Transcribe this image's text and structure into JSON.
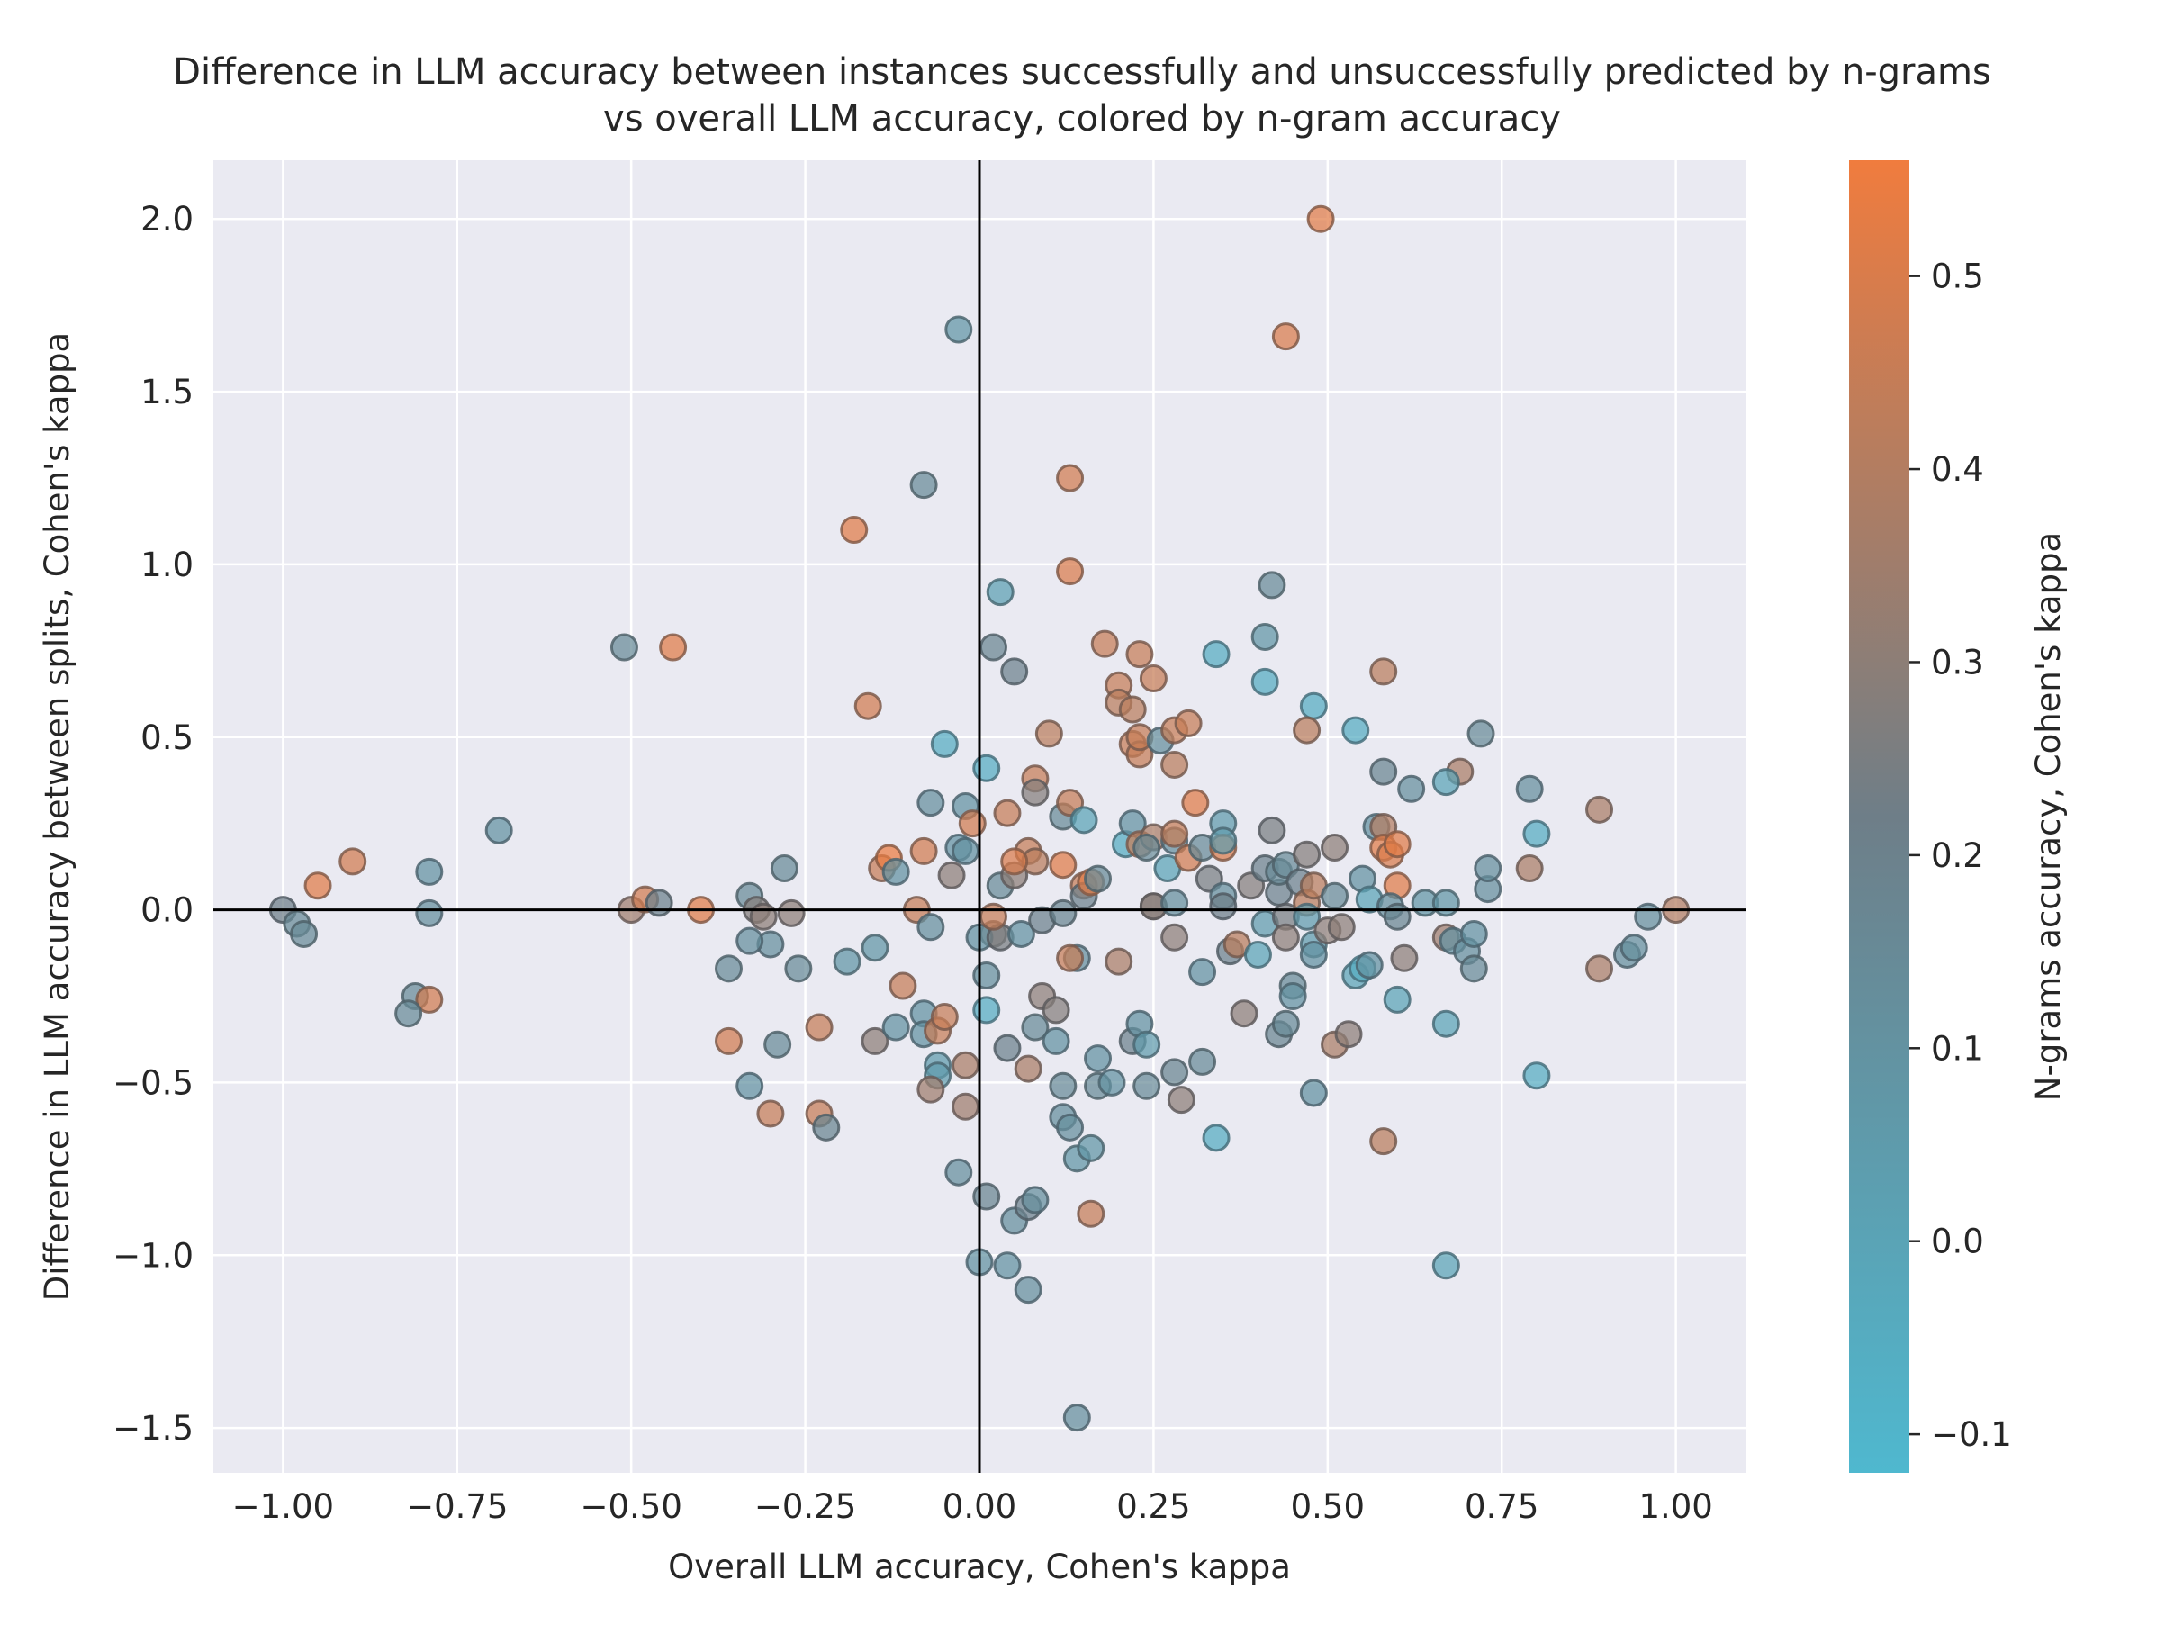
{
  "chart_data": {
    "type": "scatter",
    "title": "Difference in LLM accuracy between instances successfully and unsuccessfully predicted by n-grams",
    "subtitle": "vs overall LLM accuracy, colored by n-gram accuracy",
    "xlabel": "Overall LLM accuracy, Cohen's kappa",
    "ylabel": "Difference in LLM accuracy between splits, Cohen's kappa",
    "xlim": [
      -1.1,
      1.1
    ],
    "ylim": [
      -1.63,
      2.17
    ],
    "x_ticks": [
      -1.0,
      -0.75,
      -0.5,
      -0.25,
      0.0,
      0.25,
      0.5,
      0.75,
      1.0
    ],
    "x_tick_labels": [
      "−1.00",
      "−0.75",
      "−0.50",
      "−0.25",
      "0.00",
      "0.25",
      "0.50",
      "0.75",
      "1.00"
    ],
    "y_ticks": [
      -1.5,
      -1.0,
      -0.5,
      0.0,
      0.5,
      1.0,
      1.5,
      2.0
    ],
    "y_tick_labels": [
      "−1.5",
      "−1.0",
      "−0.5",
      "0.0",
      "0.5",
      "1.0",
      "1.5",
      "2.0"
    ],
    "grid": true,
    "reference_lines": {
      "x": 0,
      "y": 0
    },
    "colorbar": {
      "label": "N-grams accuracy, Cohen's kappa",
      "range": [
        -0.12,
        0.56
      ],
      "ticks": [
        -0.1,
        0.0,
        0.1,
        0.2,
        0.3,
        0.4,
        0.5
      ],
      "tick_labels": [
        "−0.1",
        "0.0",
        "0.1",
        "0.2",
        "0.3",
        "0.4",
        "0.5"
      ],
      "colors": [
        "#4fb8cf",
        "#6e7e88",
        "#f07c3e"
      ],
      "dark_anchor_value": 0.22,
      "dark_color": "#3a3f45"
    },
    "points": [
      {
        "x": 0.49,
        "y": 2.0,
        "c": 0.52
      },
      {
        "x": 0.44,
        "y": 1.66,
        "c": 0.5
      },
      {
        "x": -0.03,
        "y": 1.68,
        "c": 0.08
      },
      {
        "x": -0.08,
        "y": 1.23,
        "c": 0.15
      },
      {
        "x": 0.13,
        "y": 1.25,
        "c": 0.48
      },
      {
        "x": -0.18,
        "y": 1.1,
        "c": 0.52
      },
      {
        "x": 0.13,
        "y": 0.98,
        "c": 0.5
      },
      {
        "x": 0.03,
        "y": 0.92,
        "c": 0.02
      },
      {
        "x": 0.42,
        "y": 0.94,
        "c": 0.15
      },
      {
        "x": -0.51,
        "y": 0.76,
        "c": 0.15
      },
      {
        "x": -0.44,
        "y": 0.76,
        "c": 0.52
      },
      {
        "x": 0.02,
        "y": 0.76,
        "c": 0.18
      },
      {
        "x": 0.05,
        "y": 0.69,
        "c": 0.2
      },
      {
        "x": 0.18,
        "y": 0.77,
        "c": 0.45
      },
      {
        "x": 0.23,
        "y": 0.74,
        "c": 0.45
      },
      {
        "x": 0.34,
        "y": 0.74,
        "c": -0.05
      },
      {
        "x": 0.41,
        "y": 0.79,
        "c": 0.08
      },
      {
        "x": 0.41,
        "y": 0.66,
        "c": -0.05
      },
      {
        "x": 0.58,
        "y": 0.69,
        "c": 0.42
      },
      {
        "x": 0.2,
        "y": 0.65,
        "c": 0.45
      },
      {
        "x": 0.25,
        "y": 0.67,
        "c": 0.45
      },
      {
        "x": -0.16,
        "y": 0.59,
        "c": 0.48
      },
      {
        "x": 0.2,
        "y": 0.6,
        "c": 0.42
      },
      {
        "x": 0.22,
        "y": 0.58,
        "c": 0.42
      },
      {
        "x": 0.48,
        "y": 0.59,
        "c": -0.05
      },
      {
        "x": 0.47,
        "y": 0.52,
        "c": 0.42
      },
      {
        "x": 0.54,
        "y": 0.52,
        "c": -0.05
      },
      {
        "x": -0.05,
        "y": 0.48,
        "c": -0.05
      },
      {
        "x": 0.1,
        "y": 0.51,
        "c": 0.42
      },
      {
        "x": 0.22,
        "y": 0.48,
        "c": 0.45
      },
      {
        "x": 0.23,
        "y": 0.45,
        "c": 0.45
      },
      {
        "x": 0.23,
        "y": 0.5,
        "c": 0.45
      },
      {
        "x": 0.26,
        "y": 0.49,
        "c": 0.12
      },
      {
        "x": 0.28,
        "y": 0.42,
        "c": 0.42
      },
      {
        "x": 0.28,
        "y": 0.52,
        "c": 0.45
      },
      {
        "x": 0.3,
        "y": 0.54,
        "c": 0.45
      },
      {
        "x": 0.01,
        "y": 0.41,
        "c": -0.05
      },
      {
        "x": 0.08,
        "y": 0.38,
        "c": 0.45
      },
      {
        "x": 0.08,
        "y": 0.34,
        "c": 0.28
      },
      {
        "x": 0.58,
        "y": 0.4,
        "c": 0.18
      },
      {
        "x": 0.69,
        "y": 0.4,
        "c": 0.38
      },
      {
        "x": 0.62,
        "y": 0.35,
        "c": 0.12
      },
      {
        "x": 0.67,
        "y": 0.37,
        "c": 0.0
      },
      {
        "x": 0.79,
        "y": 0.35,
        "c": 0.12
      },
      {
        "x": 0.89,
        "y": 0.29,
        "c": 0.38
      },
      {
        "x": 0.72,
        "y": 0.51,
        "c": 0.15
      },
      {
        "x": -0.69,
        "y": 0.23,
        "c": 0.1
      },
      {
        "x": -0.9,
        "y": 0.14,
        "c": 0.48
      },
      {
        "x": -0.95,
        "y": 0.07,
        "c": 0.52
      },
      {
        "x": -0.79,
        "y": 0.11,
        "c": 0.1
      },
      {
        "x": -1.0,
        "y": 0.0,
        "c": 0.22
      },
      {
        "x": -0.98,
        "y": -0.04,
        "c": 0.15
      },
      {
        "x": -0.97,
        "y": -0.07,
        "c": 0.15
      },
      {
        "x": -0.79,
        "y": -0.01,
        "c": 0.12
      },
      {
        "x": -0.81,
        "y": -0.25,
        "c": 0.15
      },
      {
        "x": -0.79,
        "y": -0.26,
        "c": 0.48
      },
      {
        "x": -0.82,
        "y": -0.3,
        "c": 0.15
      },
      {
        "x": -0.5,
        "y": 0.0,
        "c": 0.35
      },
      {
        "x": -0.48,
        "y": 0.03,
        "c": 0.48
      },
      {
        "x": -0.46,
        "y": 0.02,
        "c": 0.2
      },
      {
        "x": -0.4,
        "y": 0.0,
        "c": 0.52
      },
      {
        "x": -0.33,
        "y": 0.04,
        "c": 0.15
      },
      {
        "x": -0.32,
        "y": 0.0,
        "c": 0.28
      },
      {
        "x": -0.31,
        "y": -0.02,
        "c": 0.3
      },
      {
        "x": -0.28,
        "y": 0.12,
        "c": 0.15
      },
      {
        "x": -0.27,
        "y": -0.01,
        "c": 0.3
      },
      {
        "x": -0.3,
        "y": -0.1,
        "c": 0.12
      },
      {
        "x": -0.33,
        "y": -0.09,
        "c": 0.12
      },
      {
        "x": -0.36,
        "y": -0.17,
        "c": 0.15
      },
      {
        "x": -0.26,
        "y": -0.17,
        "c": 0.15
      },
      {
        "x": -0.36,
        "y": -0.38,
        "c": 0.48
      },
      {
        "x": -0.29,
        "y": -0.39,
        "c": 0.15
      },
      {
        "x": -0.33,
        "y": -0.51,
        "c": 0.1
      },
      {
        "x": -0.3,
        "y": -0.59,
        "c": 0.45
      },
      {
        "x": -0.23,
        "y": -0.34,
        "c": 0.45
      },
      {
        "x": -0.23,
        "y": -0.59,
        "c": 0.45
      },
      {
        "x": -0.22,
        "y": -0.63,
        "c": 0.18
      },
      {
        "x": -0.19,
        "y": -0.15,
        "c": 0.08
      },
      {
        "x": -0.15,
        "y": -0.11,
        "c": 0.08
      },
      {
        "x": -0.15,
        "y": -0.38,
        "c": 0.3
      },
      {
        "x": -0.12,
        "y": -0.34,
        "c": 0.1
      },
      {
        "x": -0.14,
        "y": 0.12,
        "c": 0.45
      },
      {
        "x": -0.13,
        "y": 0.15,
        "c": 0.55
      },
      {
        "x": -0.12,
        "y": 0.11,
        "c": 0.1
      },
      {
        "x": -0.08,
        "y": 0.17,
        "c": 0.48
      },
      {
        "x": -0.07,
        "y": 0.31,
        "c": 0.12
      },
      {
        "x": -0.02,
        "y": 0.3,
        "c": 0.1
      },
      {
        "x": -0.03,
        "y": 0.18,
        "c": 0.1
      },
      {
        "x": -0.02,
        "y": 0.17,
        "c": 0.1
      },
      {
        "x": -0.01,
        "y": 0.25,
        "c": 0.48
      },
      {
        "x": -0.04,
        "y": 0.1,
        "c": 0.3
      },
      {
        "x": -0.09,
        "y": 0.0,
        "c": 0.45
      },
      {
        "x": -0.07,
        "y": -0.05,
        "c": 0.12
      },
      {
        "x": -0.11,
        "y": -0.22,
        "c": 0.45
      },
      {
        "x": -0.08,
        "y": -0.3,
        "c": 0.1
      },
      {
        "x": -0.08,
        "y": -0.36,
        "c": 0.1
      },
      {
        "x": -0.06,
        "y": -0.35,
        "c": 0.45
      },
      {
        "x": -0.05,
        "y": -0.31,
        "c": 0.45
      },
      {
        "x": -0.06,
        "y": -0.45,
        "c": 0.05
      },
      {
        "x": -0.06,
        "y": -0.48,
        "c": 0.05
      },
      {
        "x": -0.07,
        "y": -0.52,
        "c": 0.35
      },
      {
        "x": -0.02,
        "y": -0.45,
        "c": 0.38
      },
      {
        "x": -0.02,
        "y": -0.57,
        "c": 0.35
      },
      {
        "x": -0.03,
        "y": -0.76,
        "c": 0.12
      },
      {
        "x": 0.01,
        "y": -0.83,
        "c": 0.18
      },
      {
        "x": 0.0,
        "y": -1.02,
        "c": 0.1
      },
      {
        "x": 0.04,
        "y": -1.03,
        "c": 0.1
      },
      {
        "x": 0.07,
        "y": -1.1,
        "c": 0.12
      },
      {
        "x": 0.05,
        "y": -0.9,
        "c": 0.12
      },
      {
        "x": 0.07,
        "y": -0.86,
        "c": 0.2
      },
      {
        "x": 0.08,
        "y": -0.84,
        "c": 0.12
      },
      {
        "x": 0.14,
        "y": -1.47,
        "c": 0.12
      },
      {
        "x": 0.02,
        "y": -0.07,
        "c": 0.3
      },
      {
        "x": 0.0,
        "y": -0.08,
        "c": 0.1
      },
      {
        "x": 0.01,
        "y": -0.19,
        "c": 0.12
      },
      {
        "x": 0.01,
        "y": -0.29,
        "c": -0.05
      },
      {
        "x": 0.03,
        "y": -0.08,
        "c": 0.25
      },
      {
        "x": 0.04,
        "y": -0.4,
        "c": 0.2
      },
      {
        "x": 0.03,
        "y": 0.07,
        "c": 0.15
      },
      {
        "x": 0.05,
        "y": 0.1,
        "c": 0.3
      },
      {
        "x": 0.04,
        "y": 0.28,
        "c": 0.45
      },
      {
        "x": 0.02,
        "y": -0.02,
        "c": 0.45
      },
      {
        "x": 0.06,
        "y": -0.07,
        "c": 0.1
      },
      {
        "x": 0.07,
        "y": 0.17,
        "c": 0.45
      },
      {
        "x": 0.08,
        "y": 0.14,
        "c": 0.42
      },
      {
        "x": 0.05,
        "y": 0.14,
        "c": 0.5
      },
      {
        "x": 0.09,
        "y": -0.03,
        "c": 0.2
      },
      {
        "x": 0.09,
        "y": -0.25,
        "c": 0.3
      },
      {
        "x": 0.08,
        "y": -0.34,
        "c": 0.15
      },
      {
        "x": 0.07,
        "y": -0.46,
        "c": 0.38
      },
      {
        "x": 0.11,
        "y": -0.29,
        "c": 0.28
      },
      {
        "x": 0.11,
        "y": -0.38,
        "c": 0.1
      },
      {
        "x": 0.12,
        "y": -0.51,
        "c": 0.15
      },
      {
        "x": 0.12,
        "y": -0.6,
        "c": 0.12
      },
      {
        "x": 0.13,
        "y": -0.63,
        "c": 0.12
      },
      {
        "x": 0.14,
        "y": -0.72,
        "c": 0.08
      },
      {
        "x": 0.16,
        "y": -0.69,
        "c": 0.08
      },
      {
        "x": 0.16,
        "y": -0.88,
        "c": 0.45
      },
      {
        "x": 0.12,
        "y": 0.27,
        "c": 0.15
      },
      {
        "x": 0.13,
        "y": 0.31,
        "c": 0.45
      },
      {
        "x": 0.15,
        "y": 0.26,
        "c": 0.0
      },
      {
        "x": 0.12,
        "y": 0.13,
        "c": 0.52
      },
      {
        "x": 0.12,
        "y": -0.01,
        "c": 0.18
      },
      {
        "x": 0.14,
        "y": -0.14,
        "c": 0.12
      },
      {
        "x": 0.13,
        "y": -0.14,
        "c": 0.45
      },
      {
        "x": 0.15,
        "y": 0.07,
        "c": 0.45
      },
      {
        "x": 0.15,
        "y": 0.04,
        "c": 0.2
      },
      {
        "x": 0.16,
        "y": 0.08,
        "c": 0.52
      },
      {
        "x": 0.17,
        "y": 0.09,
        "c": 0.15
      },
      {
        "x": 0.17,
        "y": -0.43,
        "c": 0.1
      },
      {
        "x": 0.17,
        "y": -0.51,
        "c": 0.15
      },
      {
        "x": 0.19,
        "y": -0.5,
        "c": 0.1
      },
      {
        "x": 0.2,
        "y": -0.15,
        "c": 0.38
      },
      {
        "x": 0.21,
        "y": 0.19,
        "c": -0.05
      },
      {
        "x": 0.22,
        "y": 0.25,
        "c": 0.1
      },
      {
        "x": 0.23,
        "y": 0.19,
        "c": 0.45
      },
      {
        "x": 0.25,
        "y": 0.21,
        "c": 0.38
      },
      {
        "x": 0.24,
        "y": 0.18,
        "c": 0.15
      },
      {
        "x": 0.25,
        "y": 0.01,
        "c": 0.25
      },
      {
        "x": 0.25,
        "y": 0.01,
        "c": 0.3
      },
      {
        "x": 0.22,
        "y": -0.38,
        "c": 0.2
      },
      {
        "x": 0.23,
        "y": -0.33,
        "c": 0.1
      },
      {
        "x": 0.24,
        "y": -0.39,
        "c": 0.05
      },
      {
        "x": 0.24,
        "y": -0.51,
        "c": 0.15
      },
      {
        "x": 0.27,
        "y": 0.12,
        "c": 0.0
      },
      {
        "x": 0.28,
        "y": 0.2,
        "c": 0.12
      },
      {
        "x": 0.28,
        "y": 0.22,
        "c": 0.45
      },
      {
        "x": 0.3,
        "y": 0.15,
        "c": 0.48
      },
      {
        "x": 0.31,
        "y": 0.31,
        "c": 0.52
      },
      {
        "x": 0.28,
        "y": 0.02,
        "c": 0.12
      },
      {
        "x": 0.28,
        "y": -0.08,
        "c": 0.3
      },
      {
        "x": 0.28,
        "y": -0.47,
        "c": 0.18
      },
      {
        "x": 0.29,
        "y": -0.55,
        "c": 0.3
      },
      {
        "x": 0.32,
        "y": -0.44,
        "c": 0.15
      },
      {
        "x": 0.32,
        "y": -0.18,
        "c": 0.1
      },
      {
        "x": 0.32,
        "y": 0.18,
        "c": 0.15
      },
      {
        "x": 0.33,
        "y": 0.09,
        "c": 0.25
      },
      {
        "x": 0.35,
        "y": 0.25,
        "c": 0.05
      },
      {
        "x": 0.35,
        "y": 0.18,
        "c": 0.5
      },
      {
        "x": 0.35,
        "y": 0.2,
        "c": 0.05
      },
      {
        "x": 0.35,
        "y": 0.04,
        "c": 0.12
      },
      {
        "x": 0.35,
        "y": 0.01,
        "c": 0.22
      },
      {
        "x": 0.36,
        "y": -0.12,
        "c": 0.2
      },
      {
        "x": 0.37,
        "y": -0.1,
        "c": 0.42
      },
      {
        "x": 0.34,
        "y": -0.66,
        "c": -0.05
      },
      {
        "x": 0.38,
        "y": -0.3,
        "c": 0.3
      },
      {
        "x": 0.39,
        "y": 0.07,
        "c": 0.28
      },
      {
        "x": 0.4,
        "y": -0.13,
        "c": 0.0
      },
      {
        "x": 0.41,
        "y": 0.12,
        "c": 0.2
      },
      {
        "x": 0.41,
        "y": -0.04,
        "c": 0.05
      },
      {
        "x": 0.42,
        "y": 0.23,
        "c": 0.25
      },
      {
        "x": 0.43,
        "y": 0.05,
        "c": 0.2
      },
      {
        "x": 0.43,
        "y": 0.11,
        "c": 0.15
      },
      {
        "x": 0.44,
        "y": 0.13,
        "c": 0.15
      },
      {
        "x": 0.44,
        "y": -0.02,
        "c": 0.25
      },
      {
        "x": 0.44,
        "y": -0.08,
        "c": 0.3
      },
      {
        "x": 0.43,
        "y": -0.36,
        "c": 0.18
      },
      {
        "x": 0.44,
        "y": -0.33,
        "c": 0.15
      },
      {
        "x": 0.45,
        "y": -0.22,
        "c": 0.15
      },
      {
        "x": 0.45,
        "y": -0.25,
        "c": 0.1
      },
      {
        "x": 0.46,
        "y": 0.08,
        "c": 0.2
      },
      {
        "x": 0.47,
        "y": 0.16,
        "c": 0.28
      },
      {
        "x": 0.47,
        "y": 0.02,
        "c": 0.42
      },
      {
        "x": 0.48,
        "y": 0.07,
        "c": 0.42
      },
      {
        "x": 0.47,
        "y": -0.02,
        "c": 0.05
      },
      {
        "x": 0.48,
        "y": -0.1,
        "c": 0.05
      },
      {
        "x": 0.48,
        "y": -0.13,
        "c": 0.1
      },
      {
        "x": 0.48,
        "y": -0.53,
        "c": 0.1
      },
      {
        "x": 0.5,
        "y": -0.06,
        "c": 0.3
      },
      {
        "x": 0.51,
        "y": 0.18,
        "c": 0.3
      },
      {
        "x": 0.51,
        "y": 0.04,
        "c": 0.15
      },
      {
        "x": 0.51,
        "y": -0.39,
        "c": 0.38
      },
      {
        "x": 0.52,
        "y": -0.05,
        "c": 0.3
      },
      {
        "x": 0.53,
        "y": -0.36,
        "c": 0.3
      },
      {
        "x": 0.54,
        "y": -0.19,
        "c": 0.0
      },
      {
        "x": 0.55,
        "y": -0.17,
        "c": -0.05
      },
      {
        "x": 0.56,
        "y": -0.16,
        "c": 0.1
      },
      {
        "x": 0.55,
        "y": 0.09,
        "c": 0.1
      },
      {
        "x": 0.56,
        "y": 0.03,
        "c": 0.0
      },
      {
        "x": 0.57,
        "y": 0.24,
        "c": 0.1
      },
      {
        "x": 0.58,
        "y": 0.24,
        "c": 0.4
      },
      {
        "x": 0.58,
        "y": 0.18,
        "c": 0.52
      },
      {
        "x": 0.59,
        "y": 0.16,
        "c": 0.5
      },
      {
        "x": 0.6,
        "y": 0.19,
        "c": 0.52
      },
      {
        "x": 0.6,
        "y": 0.07,
        "c": 0.52
      },
      {
        "x": 0.59,
        "y": 0.01,
        "c": 0.12
      },
      {
        "x": 0.6,
        "y": -0.02,
        "c": 0.18
      },
      {
        "x": 0.61,
        "y": -0.14,
        "c": 0.3
      },
      {
        "x": 0.6,
        "y": -0.26,
        "c": 0.0
      },
      {
        "x": 0.64,
        "y": 0.02,
        "c": 0.08
      },
      {
        "x": 0.58,
        "y": -0.67,
        "c": 0.42
      },
      {
        "x": 0.67,
        "y": -0.08,
        "c": 0.35
      },
      {
        "x": 0.67,
        "y": 0.02,
        "c": 0.08
      },
      {
        "x": 0.68,
        "y": -0.09,
        "c": 0.1
      },
      {
        "x": 0.7,
        "y": -0.12,
        "c": 0.12
      },
      {
        "x": 0.71,
        "y": -0.07,
        "c": 0.1
      },
      {
        "x": 0.71,
        "y": -0.17,
        "c": 0.15
      },
      {
        "x": 0.73,
        "y": 0.06,
        "c": 0.12
      },
      {
        "x": 0.73,
        "y": 0.12,
        "c": 0.12
      },
      {
        "x": 0.67,
        "y": -0.33,
        "c": 0.0
      },
      {
        "x": 0.67,
        "y": -1.03,
        "c": 0.0
      },
      {
        "x": 0.8,
        "y": 0.22,
        "c": -0.05
      },
      {
        "x": 0.8,
        "y": -0.48,
        "c": -0.05
      },
      {
        "x": 0.79,
        "y": 0.12,
        "c": 0.38
      },
      {
        "x": 0.89,
        "y": -0.17,
        "c": 0.38
      },
      {
        "x": 0.93,
        "y": -0.13,
        "c": 0.12
      },
      {
        "x": 0.94,
        "y": -0.11,
        "c": 0.12
      },
      {
        "x": 0.96,
        "y": -0.02,
        "c": 0.12
      },
      {
        "x": 1.0,
        "y": 0.0,
        "c": 0.4
      }
    ]
  }
}
